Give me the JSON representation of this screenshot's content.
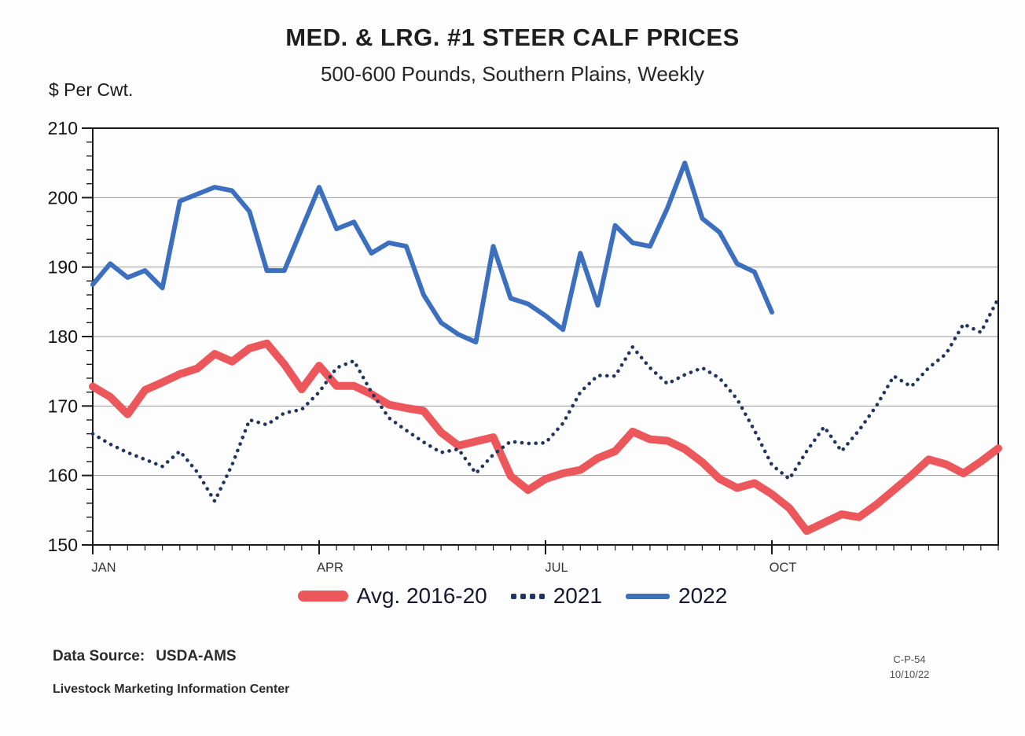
{
  "header": {
    "title": "MED. & LRG. #1 STEER CALF PRICES",
    "subtitle": "500-600 Pounds, Southern Plains, Weekly"
  },
  "chart_data": {
    "type": "line",
    "title": "MED. & LRG. #1 STEER CALF PRICES",
    "subtitle": "500-600 Pounds, Southern Plains, Weekly",
    "ylabel": "$ Per Cwt.",
    "xlabel": "",
    "ylim": [
      150,
      210
    ],
    "y_ticks": [
      150,
      160,
      170,
      180,
      190,
      200,
      210
    ],
    "y_minor_step": 2,
    "grid": true,
    "legend_position": "bottom",
    "x_unit": "week",
    "weeks_total": 53,
    "x_tick_labels": [
      "JAN",
      "APR",
      "JUL",
      "OCT"
    ],
    "x_tick_weeks": [
      1,
      14,
      27,
      40
    ],
    "series": [
      {
        "name": "Avg. 2016-20",
        "color": "#ec575c",
        "style": "solid-thick",
        "values": [
          172.8,
          171.3,
          168.8,
          172.3,
          173.4,
          174.6,
          175.4,
          177.5,
          176.4,
          178.3,
          179.0,
          176.0,
          172.4,
          175.8,
          172.9,
          172.9,
          171.7,
          170.2,
          169.7,
          169.3,
          166.2,
          164.3,
          164.9,
          165.5,
          159.9,
          157.9,
          159.5,
          160.3,
          160.8,
          162.5,
          163.5,
          166.3,
          165.2,
          165.0,
          163.8,
          161.9,
          159.5,
          158.2,
          158.9,
          157.3,
          155.3,
          152.0,
          153.2,
          154.4,
          154.0,
          155.8,
          157.9,
          160.0,
          162.3,
          161.6,
          160.3,
          162.0,
          163.9
        ]
      },
      {
        "name": "2021",
        "color": "#22355f",
        "style": "dotted",
        "values": [
          166.0,
          164.5,
          163.3,
          162.3,
          161.3,
          163.5,
          160.5,
          156.3,
          161.5,
          168.0,
          167.3,
          169.0,
          169.5,
          172.0,
          175.5,
          176.5,
          172.0,
          168.3,
          166.5,
          164.8,
          163.3,
          163.8,
          160.3,
          163.0,
          164.9,
          164.6,
          164.7,
          167.5,
          172.0,
          174.4,
          174.3,
          178.5,
          175.5,
          173.2,
          174.5,
          175.5,
          174.0,
          171.0,
          166.5,
          161.5,
          159.5,
          163.5,
          167.0,
          163.5,
          166.5,
          170.0,
          174.3,
          172.8,
          175.5,
          177.5,
          181.8,
          180.6,
          185.5
        ]
      },
      {
        "name": "2022",
        "color": "#3c70bf",
        "style": "solid",
        "values": [
          187.5,
          190.5,
          188.5,
          189.5,
          187.0,
          199.5,
          200.5,
          201.5,
          201.0,
          198.0,
          189.5,
          189.5,
          195.5,
          201.5,
          195.5,
          196.5,
          192.0,
          193.5,
          193.0,
          186.0,
          182.0,
          180.3,
          179.2,
          193.0,
          185.5,
          184.7,
          183.0,
          181.0,
          192.0,
          184.5,
          196.0,
          193.5,
          193.0,
          198.5,
          205.0,
          197.0,
          195.0,
          190.5,
          189.3,
          183.5
        ]
      }
    ],
    "colors": {
      "grid": "#999999",
      "axis": "#1a1a1a",
      "tick_label": "#111111",
      "month_label": "#333333"
    }
  },
  "footer": {
    "source_label": "Data Source:",
    "source_value": "USDA-AMS",
    "org": "Livestock Marketing Information Center",
    "code": "C-P-54",
    "date": "10/10/22"
  }
}
